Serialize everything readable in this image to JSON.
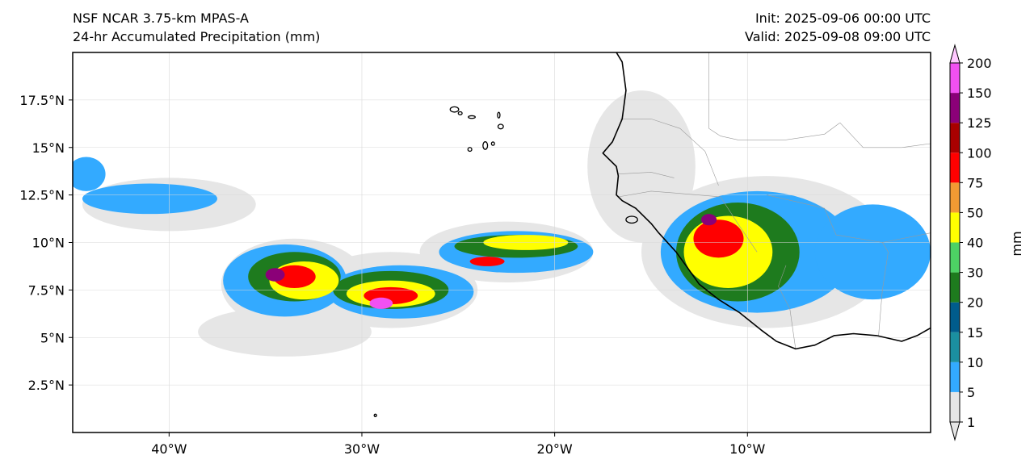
{
  "header": {
    "model": "NSF NCAR 3.75-km MPAS-A",
    "field": "24-hr Accumulated Precipitation (mm)",
    "init": "Init: 2025-09-06 00:00 UTC",
    "valid": "Valid: 2025-09-08 09:00 UTC"
  },
  "map": {
    "lon_range": [
      -45,
      -0.5
    ],
    "lat_range": [
      0,
      20
    ],
    "lat_ticks": [
      {
        "value": 2.5,
        "label": "2.5°N"
      },
      {
        "value": 5,
        "label": "5°N"
      },
      {
        "value": 7.5,
        "label": "7.5°N"
      },
      {
        "value": 10,
        "label": "10°N"
      },
      {
        "value": 12.5,
        "label": "12.5°N"
      },
      {
        "value": 15,
        "label": "15°N"
      },
      {
        "value": 17.5,
        "label": "17.5°N"
      }
    ],
    "lon_ticks": [
      {
        "value": -40,
        "label": "40°W"
      },
      {
        "value": -30,
        "label": "30°W"
      },
      {
        "value": -20,
        "label": "20°W"
      },
      {
        "value": -10,
        "label": "10°W"
      }
    ],
    "gridlines": true
  },
  "colorbar": {
    "unit_label": "mm",
    "levels": [
      {
        "label": "1",
        "color": "#e6e6e6"
      },
      {
        "label": "5",
        "color": "#33aaff"
      },
      {
        "label": "10",
        "color": "#1b8fa0"
      },
      {
        "label": "15",
        "color": "#005c8c"
      },
      {
        "label": "20",
        "color": "#1e7b1e"
      },
      {
        "label": "30",
        "color": "#4dd264"
      },
      {
        "label": "40",
        "color": "#ffff00"
      },
      {
        "label": "50",
        "color": "#f29a33"
      },
      {
        "label": "75",
        "color": "#ff0000"
      },
      {
        "label": "100",
        "color": "#a80000"
      },
      {
        "label": "125",
        "color": "#8b0078"
      },
      {
        "label": "150",
        "color": "#f250f2"
      },
      {
        "label": "200",
        "color": "#ffc8ff"
      }
    ]
  },
  "precip_features": [
    {
      "name": "atlantic-band-west",
      "lon": -33.5,
      "lat": 7.8,
      "rx": 3.8,
      "ry": 2.4,
      "level": 0
    },
    {
      "name": "atlantic-band-central",
      "lon": -28.5,
      "lat": 7.5,
      "rx": 4.5,
      "ry": 2.0,
      "level": 0
    },
    {
      "name": "atlantic-band-east",
      "lon": -22.5,
      "lat": 9.5,
      "rx": 4.5,
      "ry": 1.6,
      "level": 0
    },
    {
      "name": "west-tail",
      "lon": -40,
      "lat": 12.0,
      "rx": 4.5,
      "ry": 1.4,
      "level": 0
    },
    {
      "name": "south-shield",
      "lon": -34,
      "lat": 5.3,
      "rx": 4.5,
      "ry": 1.3,
      "level": 0
    },
    {
      "name": "coastal-haze",
      "lon": -15.5,
      "lat": 14,
      "rx": 2.8,
      "ry": 4.0,
      "level": 0
    },
    {
      "name": "africa-shield",
      "lon": -9,
      "lat": 9.5,
      "rx": 6.5,
      "ry": 4.0,
      "level": 0
    },
    {
      "name": "band-blue-west",
      "lon": -34,
      "lat": 8.0,
      "rx": 3.2,
      "ry": 1.9,
      "level": 1
    },
    {
      "name": "band-blue-central",
      "lon": -28,
      "lat": 7.4,
      "rx": 3.8,
      "ry": 1.4,
      "level": 1
    },
    {
      "name": "band-blue-east",
      "lon": -22,
      "lat": 9.5,
      "rx": 4.0,
      "ry": 1.1,
      "level": 1
    },
    {
      "name": "west-tail-blue",
      "lon": -41,
      "lat": 12.3,
      "rx": 3.5,
      "ry": 0.8,
      "level": 1
    },
    {
      "name": "far-west-blob",
      "lon": -44.3,
      "lat": 13.6,
      "rx": 1.0,
      "ry": 0.9,
      "level": 1
    },
    {
      "name": "africa-blue",
      "lon": -9.5,
      "lat": 9.5,
      "rx": 5.0,
      "ry": 3.2,
      "level": 1
    },
    {
      "name": "se-blue",
      "lon": -3.5,
      "lat": 9.5,
      "rx": 3.0,
      "ry": 2.5,
      "level": 1
    },
    {
      "name": "band-green-west",
      "lon": -33.5,
      "lat": 8.2,
      "rx": 2.4,
      "ry": 1.3,
      "level": 4
    },
    {
      "name": "band-green-central",
      "lon": -28.5,
      "lat": 7.5,
      "rx": 3.0,
      "ry": 1.0,
      "level": 4
    },
    {
      "name": "band-green-east",
      "lon": -22,
      "lat": 9.8,
      "rx": 3.2,
      "ry": 0.6,
      "level": 4
    },
    {
      "name": "africa-green",
      "lon": -10.5,
      "lat": 9.5,
      "rx": 3.2,
      "ry": 2.6,
      "level": 4
    },
    {
      "name": "band-yellow-west",
      "lon": -33,
      "lat": 8.0,
      "rx": 1.8,
      "ry": 1.0,
      "level": 6
    },
    {
      "name": "band-yellow-central",
      "lon": -28.5,
      "lat": 7.3,
      "rx": 2.3,
      "ry": 0.7,
      "level": 6
    },
    {
      "name": "band-yellow-east",
      "lon": -21.5,
      "lat": 10.0,
      "rx": 2.2,
      "ry": 0.4,
      "level": 6
    },
    {
      "name": "africa-yellow",
      "lon": -11,
      "lat": 9.5,
      "rx": 2.3,
      "ry": 1.9,
      "level": 6
    },
    {
      "name": "band-red-west",
      "lon": -33.5,
      "lat": 8.2,
      "rx": 1.1,
      "ry": 0.6,
      "level": 8
    },
    {
      "name": "band-red-central",
      "lon": -28.5,
      "lat": 7.2,
      "rx": 1.4,
      "ry": 0.45,
      "level": 8
    },
    {
      "name": "band-red-east",
      "lon": -23.5,
      "lat": 9.0,
      "rx": 0.9,
      "ry": 0.25,
      "level": 8
    },
    {
      "name": "africa-red",
      "lon": -11.5,
      "lat": 10.2,
      "rx": 1.3,
      "ry": 1.0,
      "level": 8
    },
    {
      "name": "band-magenta-west",
      "lon": -34.5,
      "lat": 8.3,
      "rx": 0.5,
      "ry": 0.35,
      "level": 10
    },
    {
      "name": "band-pink-central",
      "lon": -29,
      "lat": 6.8,
      "rx": 0.6,
      "ry": 0.3,
      "level": 11
    },
    {
      "name": "africa-magenta",
      "lon": -12,
      "lat": 11.2,
      "rx": 0.4,
      "ry": 0.3,
      "level": 10
    }
  ],
  "coastline_path": [
    [
      -16.8,
      20
    ],
    [
      -16.5,
      19.5
    ],
    [
      -16.3,
      18
    ],
    [
      -16.5,
      16.5
    ],
    [
      -17.0,
      15.3
    ],
    [
      -17.5,
      14.7
    ],
    [
      -16.8,
      14.0
    ],
    [
      -16.7,
      13.5
    ],
    [
      -16.8,
      12.5
    ],
    [
      -16.5,
      12.2
    ],
    [
      -15.8,
      11.8
    ],
    [
      -15.0,
      11.0
    ],
    [
      -14.6,
      10.5
    ],
    [
      -13.7,
      9.5
    ],
    [
      -13.2,
      8.8
    ],
    [
      -12.5,
      7.8
    ],
    [
      -11.5,
      7.0
    ],
    [
      -10.4,
      6.3
    ],
    [
      -9.3,
      5.4
    ],
    [
      -8.5,
      4.8
    ],
    [
      -7.5,
      4.4
    ],
    [
      -6.5,
      4.6
    ],
    [
      -5.5,
      5.1
    ],
    [
      -4.5,
      5.2
    ],
    [
      -3.3,
      5.1
    ],
    [
      -2.0,
      4.8
    ],
    [
      -1.2,
      5.1
    ],
    [
      -0.5,
      5.5
    ]
  ],
  "border_paths": [
    [
      [
        -12.0,
        20
      ],
      [
        -12.0,
        16.0
      ],
      [
        -11.4,
        15.6
      ],
      [
        -10.5,
        15.4
      ],
      [
        -8.0,
        15.4
      ],
      [
        -6.0,
        15.7
      ],
      [
        -5.2,
        16.3
      ]
    ],
    [
      [
        -16.6,
        16.5
      ],
      [
        -15.0,
        16.5
      ],
      [
        -13.5,
        16.0
      ],
      [
        -12.2,
        14.8
      ],
      [
        -11.5,
        13.0
      ]
    ],
    [
      [
        -16.7,
        13.6
      ],
      [
        -15.0,
        13.7
      ],
      [
        -13.8,
        13.4
      ]
    ],
    [
      [
        -16.7,
        12.4
      ],
      [
        -15.0,
        12.7
      ],
      [
        -13.7,
        12.6
      ],
      [
        -11.4,
        12.4
      ],
      [
        -10.5,
        11.0
      ],
      [
        -9.5,
        9.5
      ]
    ],
    [
      [
        -9.0,
        12.5
      ],
      [
        -6.0,
        11.8
      ],
      [
        -5.4,
        10.4
      ],
      [
        -3.0,
        10.0
      ],
      [
        -0.5,
        10.5
      ]
    ],
    [
      [
        -3.2,
        5.1
      ],
      [
        -3.0,
        7.5
      ],
      [
        -2.7,
        9.5
      ],
      [
        -3.0,
        10.0
      ]
    ],
    [
      [
        -5.2,
        16.3
      ],
      [
        -4.0,
        15.0
      ],
      [
        -2.0,
        15.0
      ],
      [
        -0.5,
        15.2
      ]
    ],
    [
      [
        -7.5,
        4.4
      ],
      [
        -7.8,
        6.5
      ],
      [
        -8.4,
        7.7
      ],
      [
        -8.0,
        8.8
      ]
    ]
  ],
  "islands": [
    {
      "name": "cape-verde-santo-antao",
      "lon": -25.2,
      "lat": 17.0,
      "rx": 0.22,
      "ry": 0.14
    },
    {
      "name": "cape-verde-sao-vicente",
      "lon": -24.9,
      "lat": 16.8,
      "rx": 0.1,
      "ry": 0.08
    },
    {
      "name": "cape-verde-sao-nicolau",
      "lon": -24.3,
      "lat": 16.6,
      "rx": 0.18,
      "ry": 0.07
    },
    {
      "name": "cape-verde-sal",
      "lon": -22.9,
      "lat": 16.7,
      "rx": 0.06,
      "ry": 0.15
    },
    {
      "name": "cape-verde-boa-vista",
      "lon": -22.8,
      "lat": 16.1,
      "rx": 0.14,
      "ry": 0.12
    },
    {
      "name": "cape-verde-santiago",
      "lon": -23.6,
      "lat": 15.1,
      "rx": 0.12,
      "ry": 0.2
    },
    {
      "name": "cape-verde-fogo",
      "lon": -24.4,
      "lat": 14.9,
      "rx": 0.1,
      "ry": 0.1
    },
    {
      "name": "cape-verde-maio",
      "lon": -23.2,
      "lat": 15.2,
      "rx": 0.08,
      "ry": 0.09
    },
    {
      "name": "st-peter-paul-rocks",
      "lon": -29.3,
      "lat": 0.9,
      "rx": 0.05,
      "ry": 0.05
    },
    {
      "name": "bijagos-islands",
      "lon": -16.0,
      "lat": 11.2,
      "rx": 0.3,
      "ry": 0.18
    }
  ]
}
